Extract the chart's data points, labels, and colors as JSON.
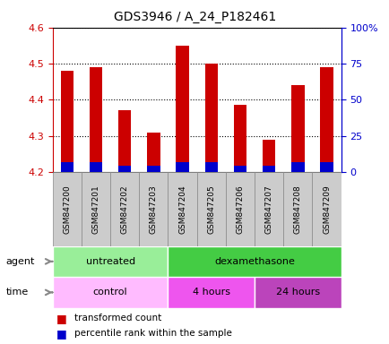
{
  "title": "GDS3946 / A_24_P182461",
  "samples": [
    "GSM847200",
    "GSM847201",
    "GSM847202",
    "GSM847203",
    "GSM847204",
    "GSM847205",
    "GSM847206",
    "GSM847207",
    "GSM847208",
    "GSM847209"
  ],
  "transformed_count": [
    4.48,
    4.49,
    4.37,
    4.31,
    4.55,
    4.5,
    4.385,
    4.29,
    4.44,
    4.49
  ],
  "base_value": 4.2,
  "percentile_rank_pct": [
    7.0,
    7.0,
    4.5,
    4.5,
    7.0,
    7.0,
    4.5,
    4.5,
    7.0,
    7.0
  ],
  "ylim_left": [
    4.2,
    4.6
  ],
  "ylim_right": [
    0,
    100
  ],
  "yticks_left": [
    4.2,
    4.3,
    4.4,
    4.5,
    4.6
  ],
  "yticks_right": [
    0,
    25,
    50,
    75,
    100
  ],
  "ytick_labels_right": [
    "0",
    "25",
    "50",
    "75",
    "100%"
  ],
  "red_color": "#cc0000",
  "blue_color": "#0000cc",
  "agent_groups": [
    {
      "label": "untreated",
      "start": 0,
      "end": 4,
      "color": "#99ee99"
    },
    {
      "label": "dexamethasone",
      "start": 4,
      "end": 10,
      "color": "#44cc44"
    }
  ],
  "time_colors": [
    "#ffbbff",
    "#ee55ee",
    "#bb44bb"
  ],
  "time_groups": [
    {
      "label": "control",
      "start": 0,
      "end": 4
    },
    {
      "label": "4 hours",
      "start": 4,
      "end": 7
    },
    {
      "label": "24 hours",
      "start": 7,
      "end": 10
    }
  ],
  "legend_items": [
    {
      "label": "transformed count",
      "color": "#cc0000"
    },
    {
      "label": "percentile rank within the sample",
      "color": "#0000cc"
    }
  ],
  "bar_width": 0.45,
  "tick_label_color_left": "#cc0000",
  "tick_label_color_right": "#0000cc",
  "sample_cell_color": "#cccccc",
  "sample_cell_border": "#888888"
}
